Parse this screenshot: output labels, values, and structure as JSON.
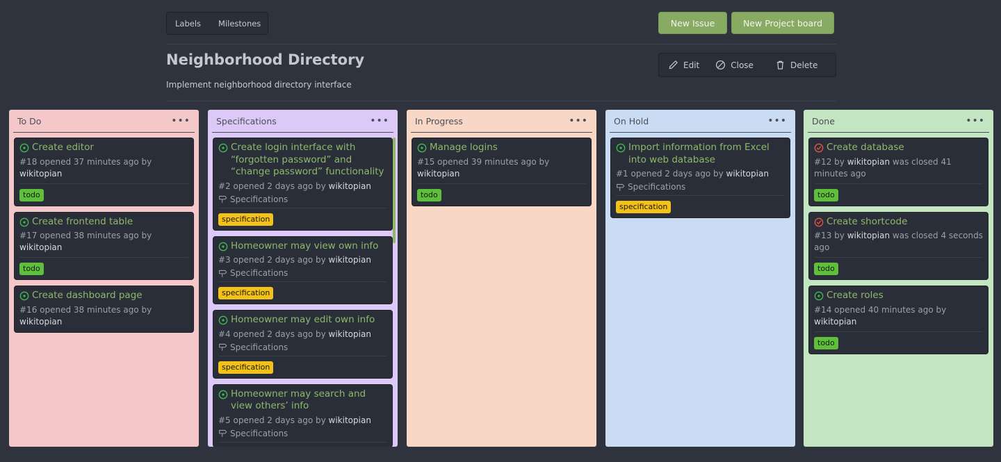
{
  "header": {
    "tabs": [
      "Labels",
      "Milestones"
    ],
    "new_issue": "New Issue",
    "new_board": "New Project board",
    "title": "Neighborhood Directory",
    "description": "Implement neighborhood directory interface",
    "actions": {
      "edit": "Edit",
      "close": "Close",
      "delete": "Delete"
    }
  },
  "columns": [
    {
      "name": "To Do",
      "bg": "#f4c8c8",
      "cards": [
        {
          "title": "Create editor",
          "state": "open",
          "meta_prefix": "#18 opened 37 minutes ago by",
          "user": "wikitopian",
          "meta_suffix": "",
          "label": "todo"
        },
        {
          "title": "Create frontend table",
          "state": "open",
          "meta_prefix": "#17 opened 38 minutes ago by",
          "user": "wikitopian",
          "meta_suffix": "",
          "label": "todo"
        },
        {
          "title": "Create dashboard page",
          "state": "open",
          "meta_prefix": "#16 opened 38 minutes ago by",
          "user": "wikitopian",
          "meta_suffix": ""
        }
      ]
    },
    {
      "name": "Specifications",
      "bg": "#dcc9f7",
      "cards": [
        {
          "title": "Create login interface with “forgotten password” and “change password” functionality",
          "state": "open",
          "meta_prefix": "#2 opened 2 days ago by",
          "user": "wikitopian",
          "meta_suffix": "",
          "project": "Specifications",
          "label": "specification"
        },
        {
          "title": "Homeowner may view own info",
          "state": "open",
          "meta_prefix": "#3 opened 2 days ago by",
          "user": "wikitopian",
          "meta_suffix": "",
          "project": "Specifications",
          "label": "specification"
        },
        {
          "title": "Homeowner may edit own info",
          "state": "open",
          "meta_prefix": "#4 opened 2 days ago by",
          "user": "wikitopian",
          "meta_suffix": "",
          "project": "Specifications",
          "label": "specification"
        },
        {
          "title": "Homeowner may search and view others’ info",
          "state": "open",
          "meta_prefix": "#5 opened 2 days ago by",
          "user": "wikitopian",
          "meta_suffix": "",
          "project": "Specifications"
        }
      ]
    },
    {
      "name": "In Progress",
      "bg": "#f8d7c6",
      "cards": [
        {
          "title": "Manage logins",
          "state": "open",
          "meta_prefix": "#15 opened 39 minutes ago by",
          "user": "wikitopian",
          "meta_suffix": "",
          "label": "todo"
        }
      ]
    },
    {
      "name": "On Hold",
      "bg": "#c9dcf4",
      "cards": [
        {
          "title": "Import information from Excel into web database",
          "state": "open",
          "meta_prefix": "#1 opened 2 days ago by",
          "user": "wikitopian",
          "meta_suffix": "",
          "project": "Specifications",
          "label": "specification"
        }
      ]
    },
    {
      "name": "Done",
      "bg": "#c3e5c2",
      "cards": [
        {
          "title": "Create database",
          "state": "closed",
          "meta_prefix": "#12 by",
          "user": "wikitopian",
          "meta_suffix": "was closed 41 minutes ago",
          "label": "todo"
        },
        {
          "title": "Create shortcode",
          "state": "closed",
          "meta_prefix": "#13 by",
          "user": "wikitopian",
          "meta_suffix": "was closed 4 seconds ago",
          "label": "todo"
        },
        {
          "title": "Create roles",
          "state": "open",
          "meta_prefix": "#14 opened 40 minutes ago by",
          "user": "wikitopian",
          "meta_suffix": "",
          "label": "todo"
        }
      ]
    }
  ],
  "colors": {
    "open": "#3fb950",
    "closed": "#e5534b",
    "title": "#8fb86b"
  },
  "icons": {
    "menu": "kebab-menu-icon",
    "project": "signpost-icon",
    "edit": "pencil-icon",
    "close": "circle-slash-icon",
    "delete": "trash-icon",
    "open": "issue-open-icon",
    "closed": "issue-closed-icon"
  }
}
